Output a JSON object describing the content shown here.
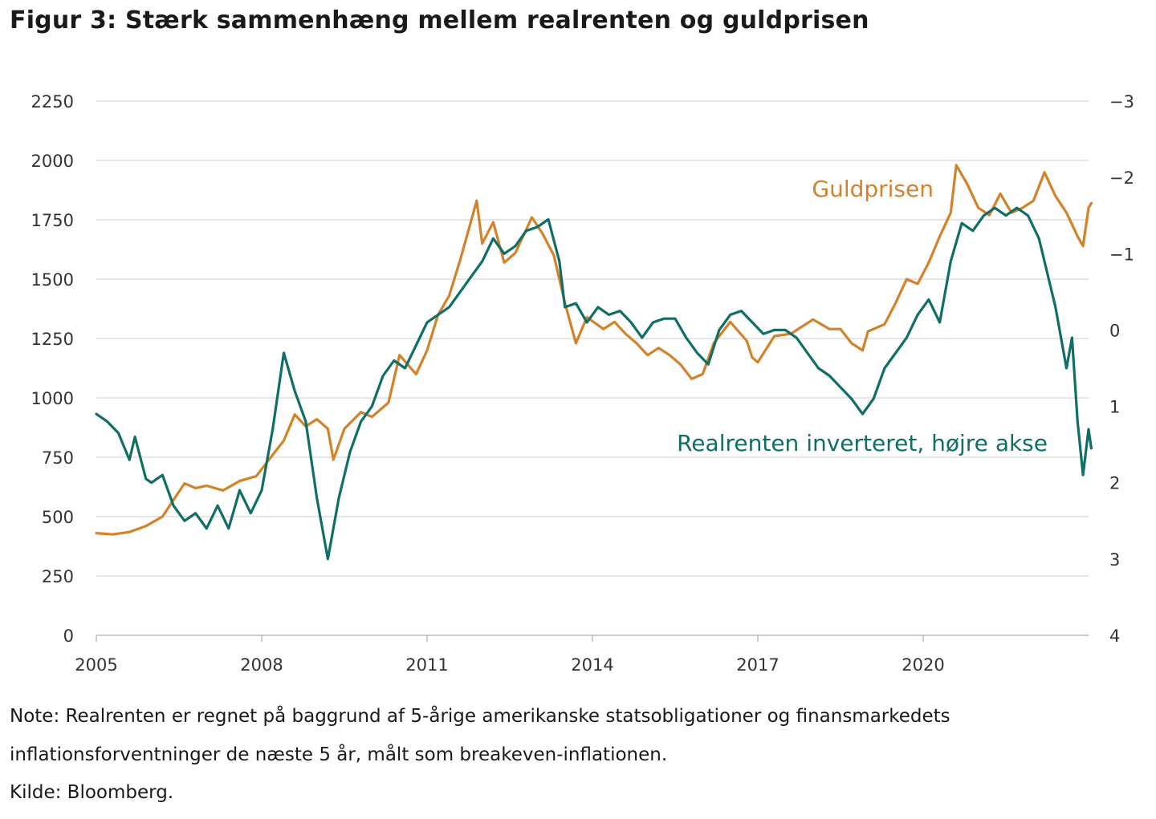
{
  "title": "Figur 3: Stærk sammenhæng mellem realrenten og guldprisen",
  "notes": {
    "line1": "Note: Realrenten er regnet på baggrund af 5-årige amerikanske statsobligationer og finansmarkedets",
    "line2": "inflationsforventninger de næste 5 år, målt som breakeven-inflationen.",
    "source": "Kilde: Bloomberg."
  },
  "colors": {
    "gold": "#d4822a",
    "real": "#0f6e65",
    "grid": "#dddddd",
    "axis": "#bbbbbb"
  },
  "chart_data": {
    "type": "line",
    "title": "Figur 3: Stærk sammenhæng mellem realrenten og guldprisen",
    "x_range": [
      2005,
      2023
    ],
    "x_ticks": [
      2005,
      2008,
      2011,
      2014,
      2017,
      2020
    ],
    "x_tick_labels": [
      "2005",
      "2008",
      "2011",
      "2014",
      "2017",
      "2020"
    ],
    "y_left": {
      "range": [
        0,
        2250
      ],
      "ticks": [
        0,
        250,
        500,
        750,
        1000,
        1250,
        1500,
        1750,
        2000,
        2250
      ],
      "tick_labels": [
        "0",
        "250",
        "500",
        "750",
        "1000",
        "1250",
        "1500",
        "1750",
        "2000",
        "2250"
      ]
    },
    "y_right": {
      "range": [
        4,
        -3
      ],
      "inverted": true,
      "ticks": [
        4,
        3,
        2,
        1,
        0,
        -1,
        -2,
        -3
      ],
      "tick_labels": [
        "4",
        "3",
        "2",
        "1",
        "0",
        "−1",
        "−2",
        "−3"
      ]
    },
    "series": [
      {
        "name": "Guldprisen",
        "axis": "left",
        "points": [
          [
            2005.0,
            430
          ],
          [
            2005.3,
            425
          ],
          [
            2005.6,
            435
          ],
          [
            2005.9,
            460
          ],
          [
            2006.2,
            500
          ],
          [
            2006.4,
            570
          ],
          [
            2006.6,
            640
          ],
          [
            2006.8,
            620
          ],
          [
            2007.0,
            630
          ],
          [
            2007.3,
            610
          ],
          [
            2007.6,
            650
          ],
          [
            2007.9,
            670
          ],
          [
            2008.0,
            700
          ],
          [
            2008.2,
            760
          ],
          [
            2008.4,
            820
          ],
          [
            2008.6,
            930
          ],
          [
            2008.8,
            880
          ],
          [
            2009.0,
            910
          ],
          [
            2009.2,
            870
          ],
          [
            2009.3,
            740
          ],
          [
            2009.5,
            870
          ],
          [
            2009.8,
            940
          ],
          [
            2010.0,
            920
          ],
          [
            2010.3,
            980
          ],
          [
            2010.5,
            1180
          ],
          [
            2010.8,
            1100
          ],
          [
            2011.0,
            1200
          ],
          [
            2011.2,
            1350
          ],
          [
            2011.4,
            1430
          ],
          [
            2011.6,
            1580
          ],
          [
            2011.9,
            1830
          ],
          [
            2012.0,
            1650
          ],
          [
            2012.2,
            1740
          ],
          [
            2012.4,
            1570
          ],
          [
            2012.6,
            1610
          ],
          [
            2012.9,
            1760
          ],
          [
            2013.1,
            1690
          ],
          [
            2013.3,
            1600
          ],
          [
            2013.5,
            1400
          ],
          [
            2013.7,
            1230
          ],
          [
            2013.9,
            1340
          ],
          [
            2014.2,
            1290
          ],
          [
            2014.4,
            1320
          ],
          [
            2014.6,
            1270
          ],
          [
            2014.8,
            1230
          ],
          [
            2015.0,
            1180
          ],
          [
            2015.2,
            1210
          ],
          [
            2015.4,
            1180
          ],
          [
            2015.6,
            1140
          ],
          [
            2015.8,
            1080
          ],
          [
            2016.0,
            1100
          ],
          [
            2016.2,
            1230
          ],
          [
            2016.5,
            1320
          ],
          [
            2016.8,
            1240
          ],
          [
            2016.9,
            1170
          ],
          [
            2017.0,
            1150
          ],
          [
            2017.3,
            1260
          ],
          [
            2017.6,
            1270
          ],
          [
            2017.8,
            1300
          ],
          [
            2018.0,
            1330
          ],
          [
            2018.3,
            1290
          ],
          [
            2018.5,
            1290
          ],
          [
            2018.7,
            1230
          ],
          [
            2018.9,
            1200
          ],
          [
            2019.0,
            1280
          ],
          [
            2019.3,
            1310
          ],
          [
            2019.5,
            1400
          ],
          [
            2019.7,
            1500
          ],
          [
            2019.9,
            1480
          ],
          [
            2020.1,
            1570
          ],
          [
            2020.3,
            1680
          ],
          [
            2020.5,
            1780
          ],
          [
            2020.6,
            1980
          ],
          [
            2020.8,
            1900
          ],
          [
            2021.0,
            1800
          ],
          [
            2021.2,
            1770
          ],
          [
            2021.4,
            1860
          ],
          [
            2021.6,
            1780
          ],
          [
            2021.8,
            1800
          ],
          [
            2022.0,
            1830
          ],
          [
            2022.2,
            1950
          ],
          [
            2022.4,
            1850
          ],
          [
            2022.6,
            1780
          ],
          [
            2022.8,
            1680
          ],
          [
            2022.9,
            1640
          ],
          [
            2023.0,
            1800
          ],
          [
            2023.05,
            1820
          ]
        ]
      },
      {
        "name": "Realrenten inverteret, højre akse",
        "axis": "right",
        "points": [
          [
            2005.0,
            1.1
          ],
          [
            2005.2,
            1.2
          ],
          [
            2005.4,
            1.35
          ],
          [
            2005.6,
            1.7
          ],
          [
            2005.7,
            1.4
          ],
          [
            2005.9,
            1.95
          ],
          [
            2006.0,
            2.0
          ],
          [
            2006.2,
            1.9
          ],
          [
            2006.4,
            2.3
          ],
          [
            2006.6,
            2.5
          ],
          [
            2006.8,
            2.4
          ],
          [
            2007.0,
            2.6
          ],
          [
            2007.2,
            2.3
          ],
          [
            2007.4,
            2.6
          ],
          [
            2007.6,
            2.1
          ],
          [
            2007.8,
            2.4
          ],
          [
            2008.0,
            2.1
          ],
          [
            2008.2,
            1.3
          ],
          [
            2008.4,
            0.3
          ],
          [
            2008.6,
            0.8
          ],
          [
            2008.8,
            1.2
          ],
          [
            2009.0,
            2.2
          ],
          [
            2009.2,
            3.0
          ],
          [
            2009.4,
            2.2
          ],
          [
            2009.6,
            1.6
          ],
          [
            2009.8,
            1.2
          ],
          [
            2010.0,
            1.0
          ],
          [
            2010.2,
            0.6
          ],
          [
            2010.4,
            0.4
          ],
          [
            2010.6,
            0.5
          ],
          [
            2010.8,
            0.2
          ],
          [
            2011.0,
            -0.1
          ],
          [
            2011.2,
            -0.2
          ],
          [
            2011.4,
            -0.3
          ],
          [
            2011.6,
            -0.5
          ],
          [
            2011.8,
            -0.7
          ],
          [
            2012.0,
            -0.9
          ],
          [
            2012.2,
            -1.2
          ],
          [
            2012.4,
            -1.0
          ],
          [
            2012.6,
            -1.1
          ],
          [
            2012.8,
            -1.3
          ],
          [
            2013.0,
            -1.35
          ],
          [
            2013.2,
            -1.45
          ],
          [
            2013.4,
            -0.9
          ],
          [
            2013.5,
            -0.3
          ],
          [
            2013.7,
            -0.35
          ],
          [
            2013.9,
            -0.1
          ],
          [
            2014.1,
            -0.3
          ],
          [
            2014.3,
            -0.2
          ],
          [
            2014.5,
            -0.25
          ],
          [
            2014.7,
            -0.1
          ],
          [
            2014.9,
            0.1
          ],
          [
            2015.1,
            -0.1
          ],
          [
            2015.3,
            -0.15
          ],
          [
            2015.5,
            -0.15
          ],
          [
            2015.7,
            0.1
          ],
          [
            2015.9,
            0.3
          ],
          [
            2016.1,
            0.45
          ],
          [
            2016.3,
            0.0
          ],
          [
            2016.5,
            -0.2
          ],
          [
            2016.7,
            -0.25
          ],
          [
            2016.9,
            -0.1
          ],
          [
            2017.1,
            0.05
          ],
          [
            2017.3,
            0.0
          ],
          [
            2017.5,
            0.0
          ],
          [
            2017.7,
            0.1
          ],
          [
            2017.9,
            0.3
          ],
          [
            2018.1,
            0.5
          ],
          [
            2018.3,
            0.6
          ],
          [
            2018.5,
            0.75
          ],
          [
            2018.7,
            0.9
          ],
          [
            2018.9,
            1.1
          ],
          [
            2019.1,
            0.9
          ],
          [
            2019.3,
            0.5
          ],
          [
            2019.5,
            0.3
          ],
          [
            2019.7,
            0.1
          ],
          [
            2019.9,
            -0.2
          ],
          [
            2020.1,
            -0.4
          ],
          [
            2020.3,
            -0.1
          ],
          [
            2020.5,
            -0.9
          ],
          [
            2020.7,
            -1.4
          ],
          [
            2020.9,
            -1.3
          ],
          [
            2021.1,
            -1.5
          ],
          [
            2021.3,
            -1.6
          ],
          [
            2021.5,
            -1.5
          ],
          [
            2021.7,
            -1.6
          ],
          [
            2021.9,
            -1.5
          ],
          [
            2022.1,
            -1.2
          ],
          [
            2022.3,
            -0.6
          ],
          [
            2022.4,
            -0.3
          ],
          [
            2022.6,
            0.5
          ],
          [
            2022.7,
            0.1
          ],
          [
            2022.8,
            1.2
          ],
          [
            2022.9,
            1.9
          ],
          [
            2023.0,
            1.3
          ],
          [
            2023.05,
            1.55
          ]
        ]
      }
    ]
  }
}
